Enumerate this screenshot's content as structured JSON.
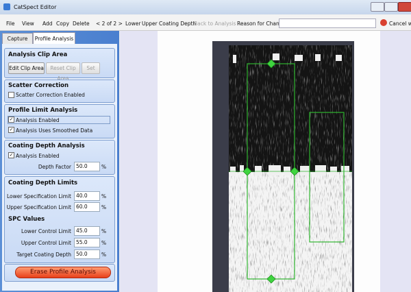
{
  "window": {
    "title": "CatSpect Editor"
  },
  "toolbar": {
    "file": "File",
    "view": "View",
    "add": "Add",
    "copy": "Copy",
    "delete": "Delete",
    "pager": "< 2 of 2 >",
    "lower": "Lower",
    "upper": "Upper",
    "coating_depth": "Coating Depth",
    "back": "Back to Analysis",
    "reason": "Reason for Change",
    "cancel": "Cancel without Saving"
  },
  "tabs": [
    "Capture",
    "Profile Analysis"
  ],
  "clip": {
    "title": "Analysis Clip Area",
    "edit": "Edit Clip Area",
    "reset": "Reset Clip Area",
    "set": "Set"
  },
  "scatter": {
    "title": "Scatter Correction",
    "enabled": "Scatter Correction Enabled"
  },
  "profile": {
    "title": "Profile Limit Analysis",
    "enabled": "Analysis Enabled",
    "smoothed": "Analysis Uses Smoothed Data"
  },
  "coating": {
    "title": "Coating Depth Analysis",
    "enabled": "Analysis Enabled",
    "depth_label": "Depth Factor",
    "depth_value": "50.0",
    "unit": "%"
  },
  "limits": {
    "title": "Coating Depth Limits",
    "rows": [
      {
        "label": "Lower Specification Limit",
        "value": "40.0",
        "unit": "%"
      },
      {
        "label": "Upper Specification Limit",
        "value": "60.0",
        "unit": "%"
      }
    ]
  },
  "spc": {
    "title": "SPC Values",
    "rows": [
      {
        "label": "Lower Control Limit",
        "value": "45.0",
        "unit": "%"
      },
      {
        "label": "Upper Control Limit",
        "value": "55.0",
        "unit": "%"
      },
      {
        "label": "Target Coating Depth",
        "value": "50.0",
        "unit": "%"
      }
    ]
  },
  "erase": "Erase Profile Analysis"
}
